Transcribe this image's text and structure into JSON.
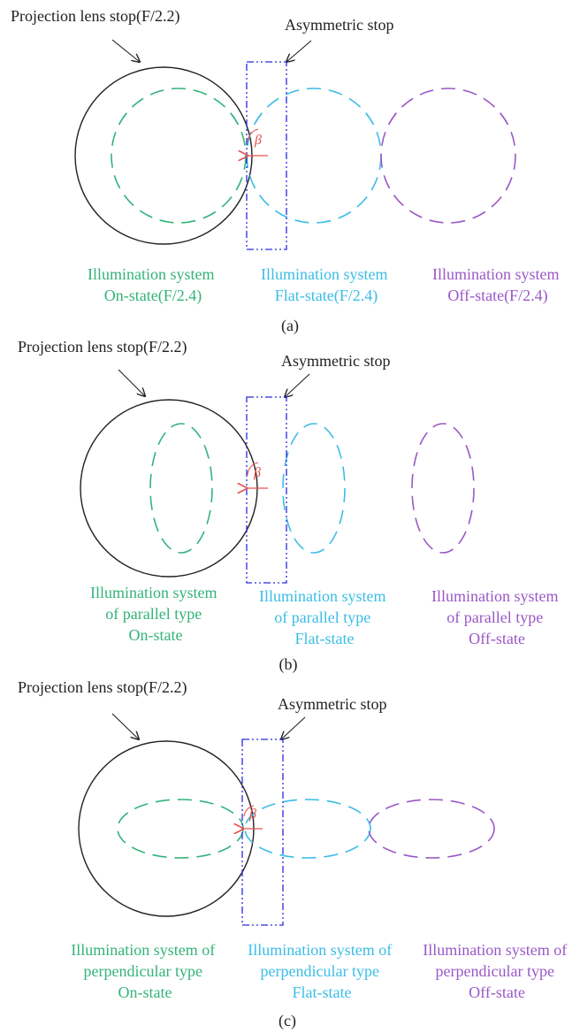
{
  "colors": {
    "on_state": "#33b37a",
    "flat_state": "#3bbde6",
    "off_state": "#9a58c6",
    "stop": "#2a2adf",
    "beta": "#e8504f",
    "lens": "#222222"
  },
  "panels": [
    {
      "id": "a",
      "projection_label": "Projection lens stop(F/2.2)",
      "asymmetric_label": "Asymmetric stop",
      "beta_symbol": "β",
      "on_state_lines": [
        "Illumination system",
        "On-state(F/2.4)"
      ],
      "flat_state_lines": [
        "Illumination system",
        "Flat-state(F/2.4)"
      ],
      "off_state_lines": [
        "Illumination system",
        "Off-state(F/2.4)"
      ],
      "caption": "(a)"
    },
    {
      "id": "b",
      "projection_label": "Projection lens stop(F/2.2)",
      "asymmetric_label": "Asymmetric stop",
      "beta_symbol": "β",
      "on_state_lines": [
        "Illumination system",
        "of parallel type",
        "On-state"
      ],
      "flat_state_lines": [
        "Illumination system",
        "of parallel type",
        "Flat-state"
      ],
      "off_state_lines": [
        "Illumination system",
        "of parallel type",
        "Off-state"
      ],
      "caption": "(b)"
    },
    {
      "id": "c",
      "projection_label": "Projection lens stop(F/2.2)",
      "asymmetric_label": "Asymmetric stop",
      "beta_symbol": "β",
      "on_state_lines": [
        "Illumination system of",
        "perpendicular type",
        "On-state"
      ],
      "flat_state_lines": [
        "Illumination system of",
        "perpendicular type",
        "Flat-state"
      ],
      "off_state_lines": [
        "Illumination system of",
        "perpendicular type",
        "Off-state"
      ],
      "caption": "(c)"
    }
  ]
}
